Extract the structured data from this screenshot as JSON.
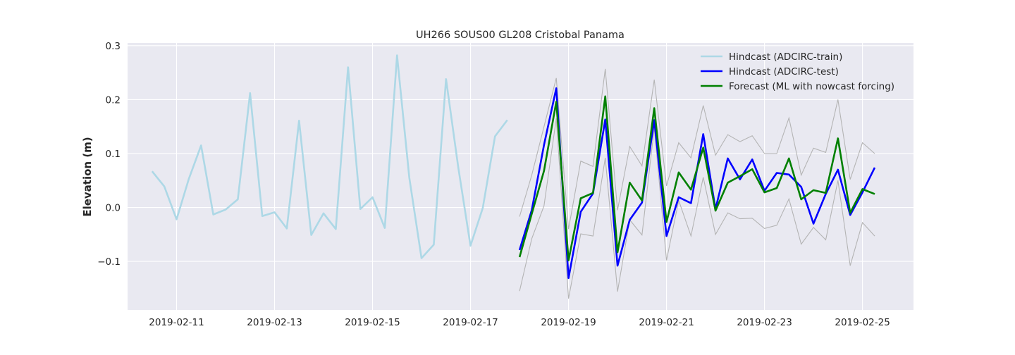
{
  "chart_data": {
    "type": "line",
    "title": "UH266 SOUS00 GL208 Cristobal Panama",
    "xlabel": "",
    "ylabel": "Elevation (m)",
    "x_axis_type": "date",
    "xlim": [
      "2019-02-10 00:00",
      "2019-02-26 01:00"
    ],
    "ylim": [
      -0.19,
      0.305
    ],
    "x_ticks": [
      "2019-02-11",
      "2019-02-13",
      "2019-02-15",
      "2019-02-17",
      "2019-02-19",
      "2019-02-21",
      "2019-02-23",
      "2019-02-25"
    ],
    "y_ticks": [
      -0.1,
      0.0,
      0.1,
      0.2,
      0.3
    ],
    "y_tick_labels": [
      "−0.1",
      "0.0",
      "0.1",
      "0.2",
      "0.3"
    ],
    "grid": true,
    "legend_position": "top-right",
    "colors": {
      "background": "#e9e9f1",
      "grid": "#ffffff",
      "train": "#add8e6",
      "test": "#0000ff",
      "forecast": "#008000",
      "band": "#b4b4b4"
    },
    "train_series": {
      "name": "Hindcast (ADCIRC-train)",
      "x": [
        "2019-02-10 12:00",
        "2019-02-10 18:00",
        "2019-02-11 00:00",
        "2019-02-11 06:00",
        "2019-02-11 12:00",
        "2019-02-11 18:00",
        "2019-02-12 00:00",
        "2019-02-12 06:00",
        "2019-02-12 12:00",
        "2019-02-12 18:00",
        "2019-02-13 00:00",
        "2019-02-13 06:00",
        "2019-02-13 12:00",
        "2019-02-13 18:00",
        "2019-02-14 00:00",
        "2019-02-14 06:00",
        "2019-02-14 12:00",
        "2019-02-14 18:00",
        "2019-02-15 00:00",
        "2019-02-15 06:00",
        "2019-02-15 12:00",
        "2019-02-15 18:00",
        "2019-02-16 00:00",
        "2019-02-16 06:00",
        "2019-02-16 12:00",
        "2019-02-16 18:00",
        "2019-02-17 00:00",
        "2019-02-17 06:00",
        "2019-02-17 12:00",
        "2019-02-17 18:00"
      ],
      "values": [
        0.067,
        0.039,
        -0.022,
        0.053,
        0.115,
        -0.013,
        -0.004,
        0.015,
        0.212,
        -0.016,
        -0.009,
        -0.039,
        0.161,
        -0.051,
        -0.011,
        -0.04,
        0.26,
        -0.003,
        0.019,
        -0.038,
        0.282,
        0.055,
        -0.094,
        -0.069,
        0.238,
        0.074,
        -0.071,
        -0.001,
        0.132,
        0.162
      ]
    },
    "test_x": [
      "2019-02-18 00:00",
      "2019-02-18 06:00",
      "2019-02-18 12:00",
      "2019-02-18 18:00",
      "2019-02-19 00:00",
      "2019-02-19 06:00",
      "2019-02-19 12:00",
      "2019-02-19 18:00",
      "2019-02-20 00:00",
      "2019-02-20 06:00",
      "2019-02-20 12:00",
      "2019-02-20 18:00",
      "2019-02-21 00:00",
      "2019-02-21 06:00",
      "2019-02-21 12:00",
      "2019-02-21 18:00",
      "2019-02-22 00:00",
      "2019-02-22 06:00",
      "2019-02-22 12:00",
      "2019-02-22 18:00",
      "2019-02-23 00:00",
      "2019-02-23 06:00",
      "2019-02-23 12:00",
      "2019-02-23 18:00",
      "2019-02-24 00:00",
      "2019-02-24 06:00",
      "2019-02-24 12:00",
      "2019-02-24 18:00",
      "2019-02-25 00:00",
      "2019-02-25 06:00"
    ],
    "series": [
      {
        "name": "Hindcast (ADCIRC-test)",
        "values": [
          -0.079,
          -0.005,
          0.116,
          0.221,
          -0.131,
          -0.008,
          0.026,
          0.163,
          -0.108,
          -0.023,
          0.009,
          0.162,
          -0.053,
          0.019,
          0.008,
          0.136,
          -0.003,
          0.091,
          0.052,
          0.089,
          0.031,
          0.064,
          0.061,
          0.038,
          -0.03,
          0.025,
          0.07,
          -0.014,
          0.028,
          0.074
        ]
      },
      {
        "name": "Forecast (ML with nowcast forcing)",
        "values": [
          -0.092,
          -0.012,
          0.068,
          0.196,
          -0.098,
          0.017,
          0.027,
          0.206,
          -0.083,
          0.046,
          0.013,
          0.184,
          -0.027,
          0.065,
          0.033,
          0.111,
          -0.006,
          0.046,
          0.058,
          0.071,
          0.028,
          0.036,
          0.091,
          0.015,
          0.032,
          0.027,
          0.128,
          -0.01,
          0.034,
          0.025
        ]
      }
    ],
    "band": {
      "upper": [
        -0.017,
        0.06,
        0.15,
        0.24,
        -0.04,
        0.086,
        0.076,
        0.257,
        -0.005,
        0.113,
        0.077,
        0.237,
        0.04,
        0.12,
        0.092,
        0.189,
        0.097,
        0.135,
        0.122,
        0.133,
        0.1,
        0.1,
        0.166,
        0.06,
        0.11,
        0.102,
        0.2,
        0.052,
        0.12,
        0.1
      ],
      "lower": [
        -0.155,
        -0.058,
        0.003,
        0.165,
        -0.169,
        -0.049,
        -0.053,
        0.092,
        -0.156,
        -0.023,
        -0.051,
        0.148,
        -0.098,
        0.013,
        -0.053,
        0.056,
        -0.05,
        -0.01,
        -0.021,
        -0.02,
        -0.039,
        -0.033,
        0.016,
        -0.068,
        -0.037,
        -0.06,
        0.05,
        -0.108,
        -0.028,
        -0.053
      ]
    }
  }
}
